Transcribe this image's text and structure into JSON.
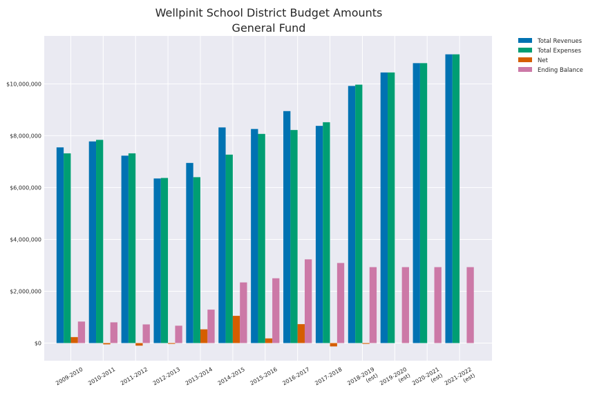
{
  "chart_data": {
    "type": "bar",
    "title": "Wellpinit School District Budget Amounts",
    "subtitle": "General Fund",
    "xlabel": "",
    "ylabel": "",
    "categories": [
      "2009-2010",
      "2010-2011",
      "2011-2012",
      "2012-2013",
      "2013-2014",
      "2014-2015",
      "2015-2016",
      "2016-2017",
      "2017-2018",
      "2018-2019\n(est)",
      "2019-2020\n(est)",
      "2020-2021\n(est)",
      "2021-2022\n(est)"
    ],
    "series": [
      {
        "name": "Total Revenues",
        "color": "#0072b2",
        "values": [
          7550000,
          7780000,
          7230000,
          6350000,
          6950000,
          8320000,
          8260000,
          8950000,
          8380000,
          9920000,
          10440000,
          10800000,
          11140000
        ]
      },
      {
        "name": "Total Expenses",
        "color": "#009e73",
        "values": [
          7320000,
          7840000,
          7320000,
          6370000,
          6400000,
          7270000,
          8070000,
          8220000,
          8520000,
          9970000,
          10440000,
          10800000,
          11140000
        ]
      },
      {
        "name": "Net",
        "color": "#d55e00",
        "values": [
          230000,
          -50000,
          -100000,
          -30000,
          530000,
          1050000,
          180000,
          730000,
          -130000,
          -30000,
          0,
          0,
          0
        ]
      },
      {
        "name": "Ending Balance",
        "color": "#cc79a7",
        "values": [
          830000,
          800000,
          720000,
          670000,
          1290000,
          2340000,
          2500000,
          3230000,
          3090000,
          2930000,
          2930000,
          2930000,
          2930000
        ]
      }
    ],
    "yticks": [
      0,
      2000000,
      4000000,
      6000000,
      8000000,
      10000000
    ],
    "ytick_labels": [
      "$0",
      "$2,000,000",
      "$4,000,000",
      "$6,000,000",
      "$8,000,000",
      "$10,000,000"
    ],
    "ylim": [
      -680000,
      11850000
    ],
    "grid": true,
    "background": "#eaeaf2",
    "legend_position": "outside-top-right"
  }
}
